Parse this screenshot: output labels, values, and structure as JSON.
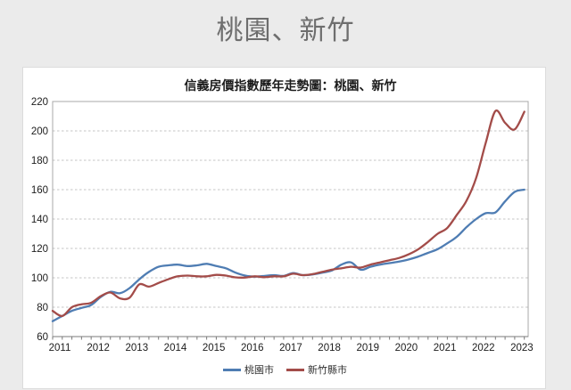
{
  "page": {
    "title": "桃園、新竹",
    "background_color": "#ebebeb"
  },
  "card": {
    "background_color": "#ffffff"
  },
  "chart_data": {
    "type": "line",
    "title": "信義房價指數歷年走勢圖：桃園、新竹",
    "xlabel": "",
    "ylabel": "",
    "x_unit": "quarter",
    "x_start": 2011.0,
    "x_step": 0.25,
    "x_domain": [
      2011.0,
      2023.35
    ],
    "x_tick_labels": [
      "2011",
      "2012",
      "2013",
      "2014",
      "2015",
      "2016",
      "2017",
      "2018",
      "2019",
      "2020",
      "2021",
      "2022",
      "2023"
    ],
    "ylim": [
      60,
      220
    ],
    "y_ticks": [
      60,
      80,
      100,
      120,
      140,
      160,
      180,
      200,
      220
    ],
    "grid": "horizontal-dashed",
    "legend_position": "bottom-center",
    "series": [
      {
        "name": "桃園市",
        "color": "#4f7db3",
        "values": [
          70.5,
          74,
          77.5,
          79.5,
          81.5,
          87,
          90.5,
          89.5,
          93,
          99,
          104,
          107.5,
          108.5,
          109,
          108,
          108.5,
          109.5,
          108,
          106.5,
          103.5,
          101.5,
          100.8,
          101.3,
          101.8,
          101.3,
          103.3,
          101.8,
          102.3,
          103.5,
          105,
          109,
          110.5,
          105.5,
          107.5,
          109,
          110,
          111,
          112.5,
          114.5,
          117,
          119.5,
          123.5,
          128,
          134.5,
          140,
          144,
          144.5,
          152,
          158.5,
          160
        ]
      },
      {
        "name": "新竹縣市",
        "color": "#a34c49",
        "values": [
          77.5,
          74,
          80,
          82,
          83,
          87.5,
          90,
          86,
          86.5,
          95.5,
          94,
          96.5,
          99,
          101,
          101.5,
          101,
          101,
          102,
          101.5,
          100.3,
          100.2,
          101,
          100.4,
          101,
          101,
          102.8,
          101.8,
          102.5,
          104,
          105.5,
          106.5,
          107.5,
          107,
          109,
          110.5,
          112,
          113.5,
          116,
          119.5,
          124.5,
          130,
          134,
          143,
          152.5,
          168,
          192,
          213.5,
          205.5,
          201,
          213
        ]
      }
    ],
    "axis_colors": {
      "grid": "#c4c4c4",
      "border": "#a8a8a8",
      "axis": "#7a7a7a",
      "tick": "#7a7a7a",
      "label": "#1c1c1c"
    }
  }
}
